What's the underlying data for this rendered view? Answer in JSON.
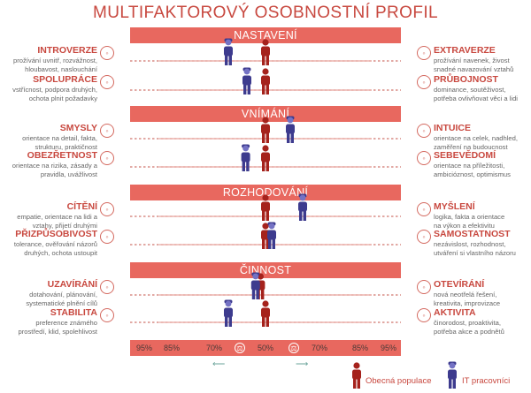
{
  "title": "MULTIFAKTOROVÝ OSOBNOSTNÍ PROFIL",
  "colors": {
    "band": "#e8685f",
    "label": "#c8483f",
    "general": "#a5221c",
    "it": "#3d3b8e",
    "line": "#d0766e"
  },
  "sections": [
    {
      "name": "NASTAVENÍ",
      "rows": [
        {
          "left": {
            "label": "INTROVERZE",
            "desc": [
              "prožívání uvnitř, rozvážnost,",
              "hloubavost, naslouchání"
            ],
            "icon": "person-icon"
          },
          "right": {
            "label": "EXTRAVERZE",
            "desc": [
              "prožívání navenek, živost",
              "snadné navazování vztahů"
            ],
            "icon": "speech-icon"
          }
        },
        {
          "left": {
            "label": "SPOLUPRÁCE",
            "desc": [
              "vstřícnost, podpora druhých,",
              "ochota plnit požadavky"
            ],
            "icon": "handshake-icon"
          },
          "right": {
            "label": "PRŮBOJNOST",
            "desc": [
              "dominance, soutěživost,",
              "potřeba ovlivňovat věci a lidi"
            ],
            "icon": "fist-icon"
          }
        }
      ]
    },
    {
      "name": "VNÍMÁNÍ",
      "rows": [
        {
          "left": {
            "label": "SMYSLY",
            "desc": [
              "orientace na detail, fakta,",
              "strukturu, praktičnost"
            ],
            "icon": "magnifier-icon"
          },
          "right": {
            "label": "INTUICE",
            "desc": [
              "orientace na celek, nadhled,",
              "zaměření na budoucnost"
            ],
            "icon": "eye-icon"
          }
        },
        {
          "left": {
            "label": "OBEZŘETNOST",
            "desc": [
              "orientace na rizika, zásady a",
              "pravidla, uvážlivost"
            ],
            "icon": "warning-icon"
          },
          "right": {
            "label": "SEBEVĚDOMÍ",
            "desc": [
              "orientace na příležitosti,",
              "ambicióznost, optimismus"
            ],
            "icon": "star-icon"
          }
        }
      ]
    },
    {
      "name": "ROZHODOVÁNÍ",
      "rows": [
        {
          "left": {
            "label": "CÍTĚNÍ",
            "desc": [
              "empatie, orientace na lidi a",
              "vztahy, přijetí druhými"
            ],
            "icon": "heart-icon"
          },
          "right": {
            "label": "MYŠLENÍ",
            "desc": [
              "logika, fakta a orientace",
              "na výkon a efektivitu"
            ],
            "icon": "brain-icon"
          }
        },
        {
          "left": {
            "label": "PŘIZPŮSOBIVOST",
            "desc": [
              "tolerance, ověřování názorů",
              "druhých, ochota ustoupit"
            ],
            "icon": "adapt-icon"
          },
          "right": {
            "label": "SAMOSTATNOST",
            "desc": [
              "nezávislost, rozhodnost,",
              "utváření si vlastního názoru"
            ],
            "icon": "compass-icon"
          }
        }
      ]
    },
    {
      "name": "ČINNOST",
      "rows": [
        {
          "left": {
            "label": "UZAVÍRÁNÍ",
            "desc": [
              "dotahování, plánování,",
              "systematické plnění cílů"
            ],
            "icon": "checklist-icon"
          },
          "right": {
            "label": "OTEVÍRÁNÍ",
            "desc": [
              "nová neotřelá řešení,",
              "kreativita, improvizace"
            ],
            "icon": "lightbulb-icon"
          }
        },
        {
          "left": {
            "label": "STABILITA",
            "desc": [
              "preference známého",
              "prostředí, klid, spolehlivost"
            ],
            "icon": "house-icon"
          },
          "right": {
            "label": "AKTIVITA",
            "desc": [
              "činorodost, proaktivita,",
              "potřeba akce a podnětů"
            ],
            "icon": "run-icon"
          }
        }
      ]
    }
  ],
  "scale_labels": [
    "95%",
    "85%",
    "70%",
    "50%",
    "70%",
    "85%",
    "95%"
  ],
  "legend": {
    "general": "Obecná populace",
    "it": "IT pracovníci"
  },
  "chart_data": {
    "type": "scatter",
    "title": "MULTIFAKTOROVÝ OSOBNOSTNÍ PROFIL",
    "x_ticks": [
      "95%",
      "85%",
      "70%",
      "50%",
      "70%",
      "85%",
      "95%"
    ],
    "xlim": [
      -100,
      100
    ],
    "categories": [
      "INTROVERZE / EXTRAVERZE",
      "SPOLUPRÁCE / PRŮBOJNOST",
      "SMYSLY / INTUICE",
      "OBEZŘETNOST / SEBEVĚDOMÍ",
      "CÍTĚNÍ / MYŠLENÍ",
      "PŘIZPŮSOBIVOST / SAMOSTATNOST",
      "UZAVÍRÁNÍ / OTEVÍRÁNÍ",
      "STABILITA / AKTIVITA"
    ],
    "series": [
      {
        "name": "Obecná populace",
        "values": [
          0,
          0,
          0,
          0,
          0,
          0,
          -4,
          0
        ]
      },
      {
        "name": "IT pracovníci",
        "values": [
          -30,
          -15,
          20,
          -16,
          30,
          5,
          -8,
          -30
        ]
      }
    ]
  }
}
